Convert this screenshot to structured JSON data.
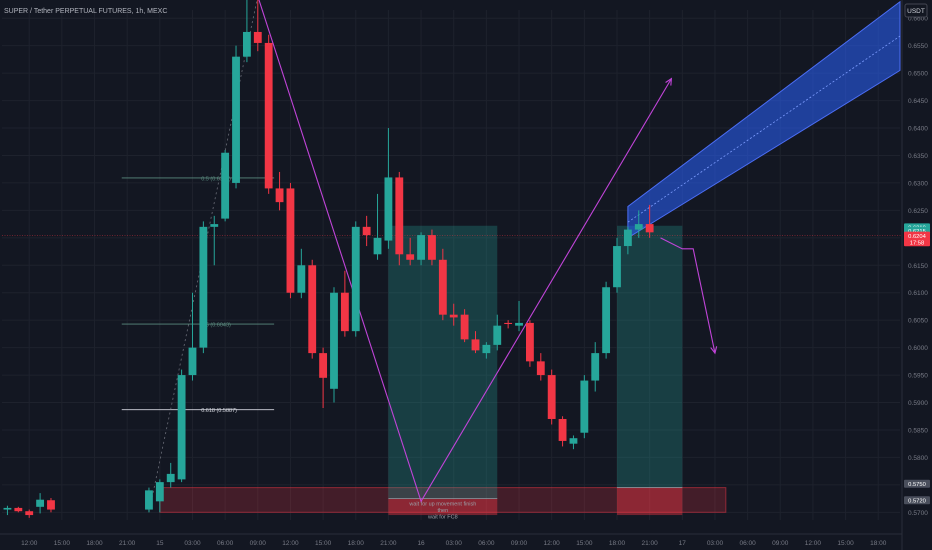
{
  "header": {
    "title": "SUPER / Tether PERPETUAL FUTURES, 1h, MEXC",
    "currency_button": "USDT"
  },
  "colors": {
    "bg": "#131722",
    "up": "#26a69a",
    "down": "#f23645",
    "grid": "#1e222d",
    "axis_text": "#787b86",
    "purple": "#c044d8",
    "channel": "#2962ff",
    "zone_green": "#26a69a",
    "zone_red": "#f23645"
  },
  "chart_data": {
    "type": "candlestick",
    "title": "SUPER / Tether PERPETUAL FUTURES, 1h, MEXC",
    "x_labels": [
      {
        "t": 2,
        "label": "12:00"
      },
      {
        "t": 5,
        "label": "15:00"
      },
      {
        "t": 8,
        "label": "18:00"
      },
      {
        "t": 11,
        "label": "21:00"
      },
      {
        "t": 14,
        "label": "15"
      },
      {
        "t": 17,
        "label": "03:00"
      },
      {
        "t": 20,
        "label": "06:00"
      },
      {
        "t": 23,
        "label": "09:00"
      },
      {
        "t": 26,
        "label": "12:00"
      },
      {
        "t": 29,
        "label": "15:00"
      },
      {
        "t": 32,
        "label": "18:00"
      },
      {
        "t": 35,
        "label": "21:00"
      },
      {
        "t": 38,
        "label": "16"
      },
      {
        "t": 41,
        "label": "03:00"
      },
      {
        "t": 44,
        "label": "06:00"
      },
      {
        "t": 47,
        "label": "09:00"
      },
      {
        "t": 50,
        "label": "12:00"
      },
      {
        "t": 53,
        "label": "15:00"
      },
      {
        "t": 56,
        "label": "18:00"
      },
      {
        "t": 59,
        "label": "21:00"
      },
      {
        "t": 62,
        "label": "17"
      },
      {
        "t": 65,
        "label": "03:00"
      },
      {
        "t": 68,
        "label": "06:00"
      },
      {
        "t": 71,
        "label": "09:00"
      },
      {
        "t": 74,
        "label": "12:00"
      },
      {
        "t": 77,
        "label": "15:00"
      },
      {
        "t": 80,
        "label": "18:00"
      }
    ],
    "y_ticks": [
      "0.5700",
      "0.5750",
      "0.5800",
      "0.5850",
      "0.5900",
      "0.5950",
      "0.6000",
      "0.6050",
      "0.6100",
      "0.6150",
      "0.6200",
      "0.6250",
      "0.6300",
      "0.6350",
      "0.6400",
      "0.6450",
      "0.6500",
      "0.6550",
      "0.6600"
    ],
    "ylim": [
      0.5686,
      0.6615
    ],
    "candles": [
      {
        "t": 0,
        "o": 0.5705,
        "h": 0.5712,
        "l": 0.5695,
        "c": 0.5708
      },
      {
        "t": 1,
        "o": 0.5708,
        "h": 0.571,
        "l": 0.57,
        "c": 0.5702
      },
      {
        "t": 2,
        "o": 0.5702,
        "h": 0.5705,
        "l": 0.569,
        "c": 0.5695
      },
      {
        "t": 3,
        "o": 0.571,
        "h": 0.5735,
        "l": 0.5698,
        "c": 0.5723
      },
      {
        "t": 4,
        "o": 0.5722,
        "h": 0.5726,
        "l": 0.57,
        "c": 0.5705
      },
      {
        "t": 13,
        "o": 0.5705,
        "h": 0.5745,
        "l": 0.57,
        "c": 0.574
      },
      {
        "t": 14,
        "o": 0.572,
        "h": 0.576,
        "l": 0.57,
        "c": 0.5755
      },
      {
        "t": 15,
        "o": 0.5755,
        "h": 0.579,
        "l": 0.5745,
        "c": 0.577
      },
      {
        "t": 16,
        "o": 0.576,
        "h": 0.596,
        "l": 0.5755,
        "c": 0.595
      },
      {
        "t": 17,
        "o": 0.595,
        "h": 0.61,
        "l": 0.594,
        "c": 0.6
      },
      {
        "t": 18,
        "o": 0.6,
        "h": 0.623,
        "l": 0.599,
        "c": 0.622
      },
      {
        "t": 19,
        "o": 0.622,
        "h": 0.624,
        "l": 0.615,
        "c": 0.6225
      },
      {
        "t": 20,
        "o": 0.6235,
        "h": 0.636,
        "l": 0.623,
        "c": 0.6355
      },
      {
        "t": 21,
        "o": 0.63,
        "h": 0.655,
        "l": 0.629,
        "c": 0.653
      },
      {
        "t": 22,
        "o": 0.653,
        "h": 0.664,
        "l": 0.652,
        "c": 0.6575
      },
      {
        "t": 23,
        "o": 0.6575,
        "h": 0.666,
        "l": 0.654,
        "c": 0.6555
      },
      {
        "t": 24,
        "o": 0.6555,
        "h": 0.657,
        "l": 0.628,
        "c": 0.629
      },
      {
        "t": 25,
        "o": 0.629,
        "h": 0.632,
        "l": 0.625,
        "c": 0.6265
      },
      {
        "t": 26,
        "o": 0.629,
        "h": 0.63,
        "l": 0.609,
        "c": 0.61
      },
      {
        "t": 27,
        "o": 0.61,
        "h": 0.618,
        "l": 0.609,
        "c": 0.615
      },
      {
        "t": 28,
        "o": 0.615,
        "h": 0.616,
        "l": 0.598,
        "c": 0.599
      },
      {
        "t": 29,
        "o": 0.599,
        "h": 0.6,
        "l": 0.589,
        "c": 0.5945
      },
      {
        "t": 30,
        "o": 0.5925,
        "h": 0.611,
        "l": 0.59,
        "c": 0.61
      },
      {
        "t": 31,
        "o": 0.61,
        "h": 0.614,
        "l": 0.602,
        "c": 0.603
      },
      {
        "t": 32,
        "o": 0.603,
        "h": 0.623,
        "l": 0.602,
        "c": 0.622
      },
      {
        "t": 33,
        "o": 0.622,
        "h": 0.624,
        "l": 0.6185,
        "c": 0.6205
      },
      {
        "t": 34,
        "o": 0.617,
        "h": 0.628,
        "l": 0.616,
        "c": 0.62
      },
      {
        "t": 35,
        "o": 0.6195,
        "h": 0.64,
        "l": 0.618,
        "c": 0.631
      },
      {
        "t": 36,
        "o": 0.631,
        "h": 0.632,
        "l": 0.615,
        "c": 0.617
      },
      {
        "t": 37,
        "o": 0.617,
        "h": 0.62,
        "l": 0.615,
        "c": 0.616
      },
      {
        "t": 38,
        "o": 0.616,
        "h": 0.621,
        "l": 0.615,
        "c": 0.6205
      },
      {
        "t": 39,
        "o": 0.6205,
        "h": 0.6215,
        "l": 0.615,
        "c": 0.616
      },
      {
        "t": 40,
        "o": 0.616,
        "h": 0.618,
        "l": 0.605,
        "c": 0.606
      },
      {
        "t": 41,
        "o": 0.606,
        "h": 0.608,
        "l": 0.604,
        "c": 0.6055
      },
      {
        "t": 42,
        "o": 0.606,
        "h": 0.607,
        "l": 0.601,
        "c": 0.6015
      },
      {
        "t": 43,
        "o": 0.6015,
        "h": 0.603,
        "l": 0.599,
        "c": 0.5995
      },
      {
        "t": 44,
        "o": 0.599,
        "h": 0.601,
        "l": 0.598,
        "c": 0.6005
      },
      {
        "t": 45,
        "o": 0.6005,
        "h": 0.606,
        "l": 0.5995,
        "c": 0.604
      },
      {
        "t": 46,
        "o": 0.6045,
        "h": 0.605,
        "l": 0.6035,
        "c": 0.6043
      },
      {
        "t": 47,
        "o": 0.604,
        "h": 0.6085,
        "l": 0.603,
        "c": 0.6045
      },
      {
        "t": 48,
        "o": 0.6045,
        "h": 0.605,
        "l": 0.5965,
        "c": 0.5975
      },
      {
        "t": 49,
        "o": 0.5975,
        "h": 0.599,
        "l": 0.594,
        "c": 0.595
      },
      {
        "t": 50,
        "o": 0.595,
        "h": 0.596,
        "l": 0.586,
        "c": 0.587
      },
      {
        "t": 51,
        "o": 0.587,
        "h": 0.5875,
        "l": 0.582,
        "c": 0.583
      },
      {
        "t": 52,
        "o": 0.5825,
        "h": 0.584,
        "l": 0.5815,
        "c": 0.5835
      },
      {
        "t": 53,
        "o": 0.5845,
        "h": 0.595,
        "l": 0.5835,
        "c": 0.594
      },
      {
        "t": 54,
        "o": 0.594,
        "h": 0.601,
        "l": 0.592,
        "c": 0.599
      },
      {
        "t": 55,
        "o": 0.599,
        "h": 0.612,
        "l": 0.598,
        "c": 0.611
      },
      {
        "t": 56,
        "o": 0.611,
        "h": 0.62,
        "l": 0.61,
        "c": 0.6185
      },
      {
        "t": 57,
        "o": 0.6185,
        "h": 0.622,
        "l": 0.617,
        "c": 0.6215
      },
      {
        "t": 58,
        "o": 0.6215,
        "h": 0.625,
        "l": 0.62,
        "c": 0.6225
      },
      {
        "t": 59,
        "o": 0.6225,
        "h": 0.626,
        "l": 0.62,
        "c": 0.621
      }
    ],
    "fib_levels": [
      {
        "price": 0.6309,
        "label": "0.5 (0.6309)"
      },
      {
        "price": 0.6043,
        "label": "0.5 (0.6043)"
      },
      {
        "price": 0.5887,
        "label": "0.618 (0.5887)"
      }
    ],
    "position_tools": [
      {
        "t0": 35,
        "t1": 45,
        "entry": 0.5725,
        "top": 0.6222,
        "stop": 0.5695,
        "text_lines": [
          "wait for up movement finish",
          "then",
          "wait for FC8"
        ]
      },
      {
        "t0": 56,
        "t1": 62,
        "entry": 0.5745,
        "top": 0.6222,
        "stop": 0.5695,
        "text_lines": []
      }
    ],
    "red_zone": {
      "t0": 14,
      "t1": 66,
      "top": 0.5745,
      "bottom": 0.57
    },
    "channel": {
      "t0": 57,
      "t1": 82,
      "lower_start": 0.62,
      "upper_start": 0.6257,
      "lower_end": 0.6505,
      "upper_end": 0.663
    },
    "purple_lines": [
      [
        [
          23,
          0.664
        ],
        [
          38,
          0.572
        ],
        [
          61,
          0.649
        ]
      ],
      [
        [
          60,
          0.62
        ],
        [
          62,
          0.618
        ],
        [
          63,
          0.618
        ],
        [
          65,
          0.599
        ]
      ]
    ],
    "dotted_line": [
      [
        13,
        0.57
      ],
      [
        23,
        0.664
      ]
    ],
    "price_line": 0.6204,
    "price_labels": [
      {
        "price": 0.6219,
        "text": "0.6219",
        "bg": "#26a69a"
      },
      {
        "price": 0.6213,
        "text": "0.6215",
        "bg": "#26a69a"
      },
      {
        "price": 0.6204,
        "text": "0.6204",
        "bg": "#f23645"
      },
      {
        "price": 0.6192,
        "text": "17:58",
        "bg": "#f23645"
      },
      {
        "price": 0.5752,
        "text": "0.5750",
        "bg": "#4a4f5c"
      },
      {
        "price": 0.5722,
        "text": "0.5720",
        "bg": "#4a4f5c"
      }
    ]
  }
}
